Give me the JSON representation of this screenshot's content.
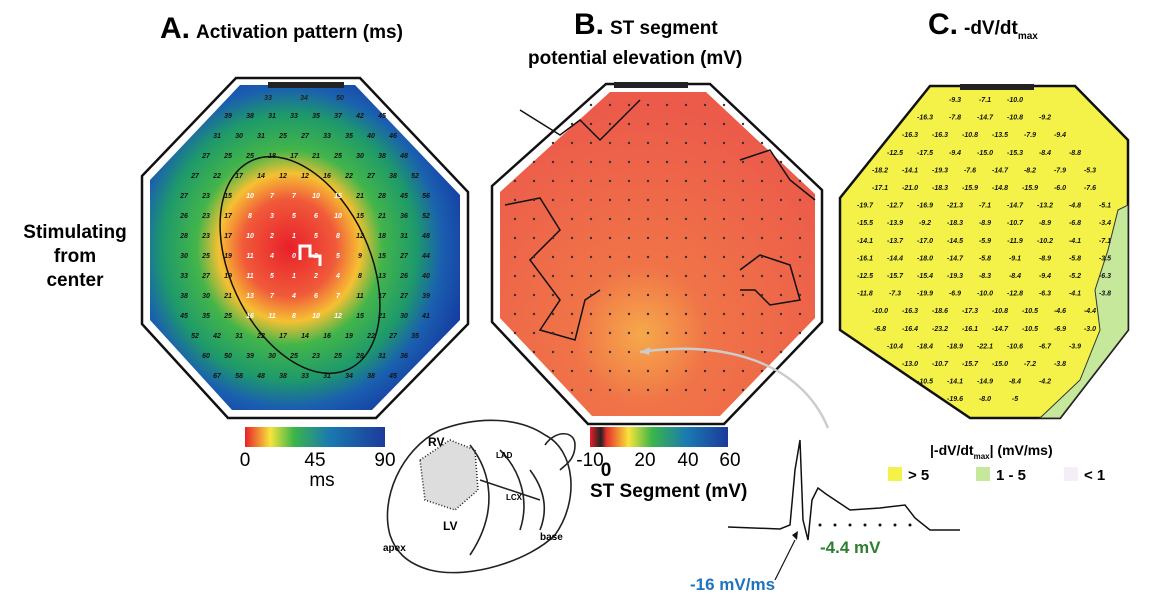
{
  "figure": {
    "row_label": "Stimulating from center",
    "panel_a": {
      "letter": "A.",
      "title": "Activation pattern (ms)",
      "top_numbers": [
        "33",
        "34",
        "50"
      ],
      "numbers": [
        [
          "39",
          "38",
          "31",
          "33",
          "35",
          "37",
          "42",
          "45"
        ],
        [
          "31",
          "30",
          "31",
          "25",
          "27",
          "33",
          "35",
          "40",
          "46"
        ],
        [
          "27",
          "25",
          "25",
          "18",
          "17",
          "21",
          "25",
          "30",
          "38",
          "48"
        ],
        [
          "27",
          "22",
          "17",
          "14",
          "12",
          "12",
          "16",
          "22",
          "27",
          "38",
          "52"
        ],
        [
          "27",
          "23",
          "15",
          "10",
          "7",
          "7",
          "10",
          "15",
          "21",
          "28",
          "45",
          "56"
        ],
        [
          "26",
          "23",
          "17",
          "8",
          "3",
          "5",
          "6",
          "10",
          "15",
          "21",
          "36",
          "52"
        ],
        [
          "28",
          "23",
          "17",
          "10",
          "2",
          "1",
          "5",
          "8",
          "12",
          "18",
          "31",
          "48"
        ],
        [
          "30",
          "25",
          "19",
          "11",
          "4",
          "0",
          "2",
          "5",
          "9",
          "15",
          "27",
          "44"
        ],
        [
          "33",
          "27",
          "19",
          "11",
          "5",
          "1",
          "2",
          "4",
          "8",
          "13",
          "26",
          "40"
        ],
        [
          "38",
          "30",
          "21",
          "13",
          "7",
          "4",
          "6",
          "7",
          "11",
          "17",
          "27",
          "39"
        ],
        [
          "45",
          "35",
          "25",
          "16",
          "11",
          "8",
          "10",
          "12",
          "15",
          "21",
          "30",
          "41"
        ],
        [
          "52",
          "42",
          "31",
          "22",
          "17",
          "14",
          "16",
          "19",
          "22",
          "27",
          "35"
        ],
        [
          "60",
          "50",
          "39",
          "30",
          "25",
          "23",
          "25",
          "28",
          "31",
          "36"
        ],
        [
          "67",
          "58",
          "48",
          "38",
          "33",
          "31",
          "34",
          "38",
          "45"
        ]
      ]
    },
    "panel_b": {
      "letter": "B.",
      "title_line1": "ST segment",
      "title_line2": "potential elevation (mV)"
    },
    "panel_c": {
      "letter": "C.",
      "title": "-dV/dt",
      "title_sub": "max",
      "numbers": [
        [
          "-9.3",
          "-7.1",
          "-10.0"
        ],
        [
          "-16.3",
          "-7.8",
          "-14.7",
          "-10.8",
          "-9.2"
        ],
        [
          "-16.3",
          "-16.3",
          "-10.8",
          "-13.5",
          "-7.9",
          "-9.4"
        ],
        [
          "-12.5",
          "-17.5",
          "-9.4",
          "-15.0",
          "-15.3",
          "-8.4",
          "-8.8"
        ],
        [
          "-18.2",
          "-14.1",
          "-19.3",
          "-7.6",
          "-14.7",
          "-8.2",
          "-7.9",
          "-5.3"
        ],
        [
          "-17.1",
          "-21.0",
          "-18.3",
          "-15.9",
          "-14.8",
          "-15.9",
          "-6.0",
          "-7.6"
        ],
        [
          "-19.7",
          "-12.7",
          "-16.9",
          "-21.3",
          "-7.1",
          "-14.7",
          "-13.2",
          "-4.8",
          "-5.1"
        ],
        [
          "-15.5",
          "-13.9",
          "-9.2",
          "-18.3",
          "-8.9",
          "-10.7",
          "-8.9",
          "-6.8",
          "-3.4"
        ],
        [
          "-14.1",
          "-13.7",
          "-17.0",
          "-14.5",
          "-5.9",
          "-11.9",
          "-10.2",
          "-4.1",
          "-7.1"
        ],
        [
          "-16.1",
          "-14.4",
          "-18.0",
          "-14.7",
          "-5.8",
          "-9.1",
          "-8.9",
          "-5.8",
          "-3.5"
        ],
        [
          "-12.5",
          "-15.7",
          "-15.4",
          "-19.3",
          "-8.3",
          "-8.4",
          "-9.4",
          "-5.2",
          "-6.3"
        ],
        [
          "-11.8",
          "-7.3",
          "-19.9",
          "-6.9",
          "-10.0",
          "-12.8",
          "-6.3",
          "-4.1",
          "-3.8"
        ],
        [
          "-10.0",
          "-16.3",
          "-18.6",
          "-17.3",
          "-10.8",
          "-10.5",
          "-4.6",
          "-4.4"
        ],
        [
          "-6.8",
          "-16.4",
          "-23.2",
          "-16.1",
          "-14.7",
          "-10.5",
          "-6.9",
          "-3.0"
        ],
        [
          "-10.4",
          "-18.4",
          "-18.9",
          "-22.1",
          "-10.6",
          "-6.7",
          "-3.9"
        ],
        [
          "-13.0",
          "-10.7",
          "-15.7",
          "-15.0",
          "-7.2",
          "-3.8"
        ],
        [
          "-10.5",
          "-14.1",
          "-14.9",
          "-8.4",
          "-4.2"
        ],
        [
          "-19.6",
          "-8.0",
          "-5"
        ]
      ]
    },
    "colorbar_a": {
      "ticks": [
        "0",
        "45",
        "90"
      ],
      "unit": "ms"
    },
    "colorbar_b": {
      "ticks": [
        "-10",
        "0",
        "20",
        "40",
        "60"
      ],
      "label": "ST Segment (mV)"
    },
    "legend_c": {
      "title": "|-dV/dt",
      "title_sub": "max",
      "title_end": "| (mV/ms)",
      "items": [
        "> 5",
        "1 - 5",
        "< 1"
      ]
    },
    "heart": {
      "labels": [
        "RV",
        "LAD",
        "LCX",
        "LV",
        "apex",
        "base"
      ]
    },
    "trace": {
      "st_label": "-4.4 mV",
      "slope_label": "-16 mV/ms"
    }
  }
}
